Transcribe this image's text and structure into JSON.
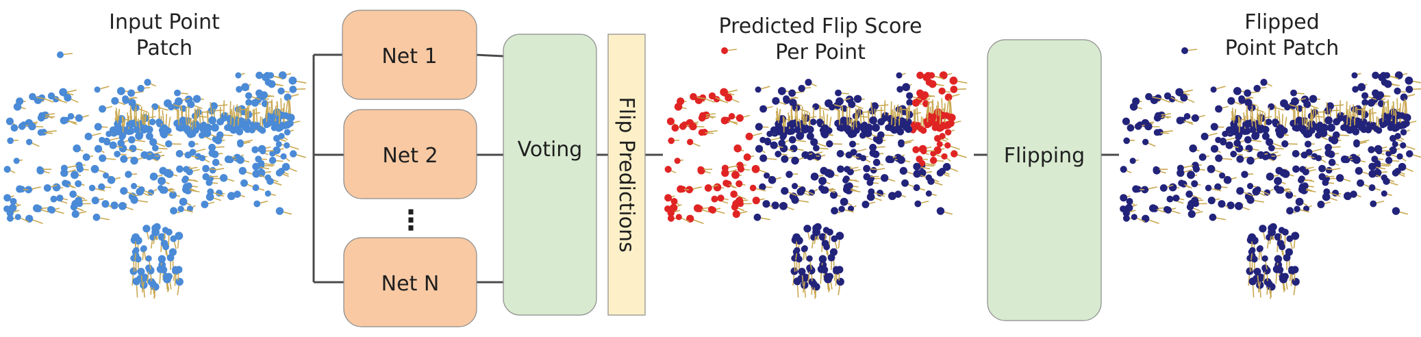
{
  "labels": {
    "input_title_line1": "Input Point",
    "input_title_line2": "Patch",
    "predicted_title_line1": "Predicted Flip Score",
    "predicted_title_line2": "Per Point",
    "flipped_title_line1": "Flipped",
    "flipped_title_line2": "Point Patch"
  },
  "nets": [
    {
      "label": "Net 1"
    },
    {
      "label": "Net 2"
    },
    {
      "label": "Net N"
    }
  ],
  "ellipsis": "⋮",
  "voting_label": "Voting",
  "flip_predictions_label": "Flip Predictions",
  "flipping_label": "Flipping",
  "colors": {
    "net_box": "#f8c9a3",
    "green_box": "#d8ead0",
    "yellow_box": "#fdf0c8",
    "input_points": "#4a8ad6",
    "flip_red": "#e02424",
    "kept_navy": "#22237a",
    "normals": "#c9a850"
  }
}
